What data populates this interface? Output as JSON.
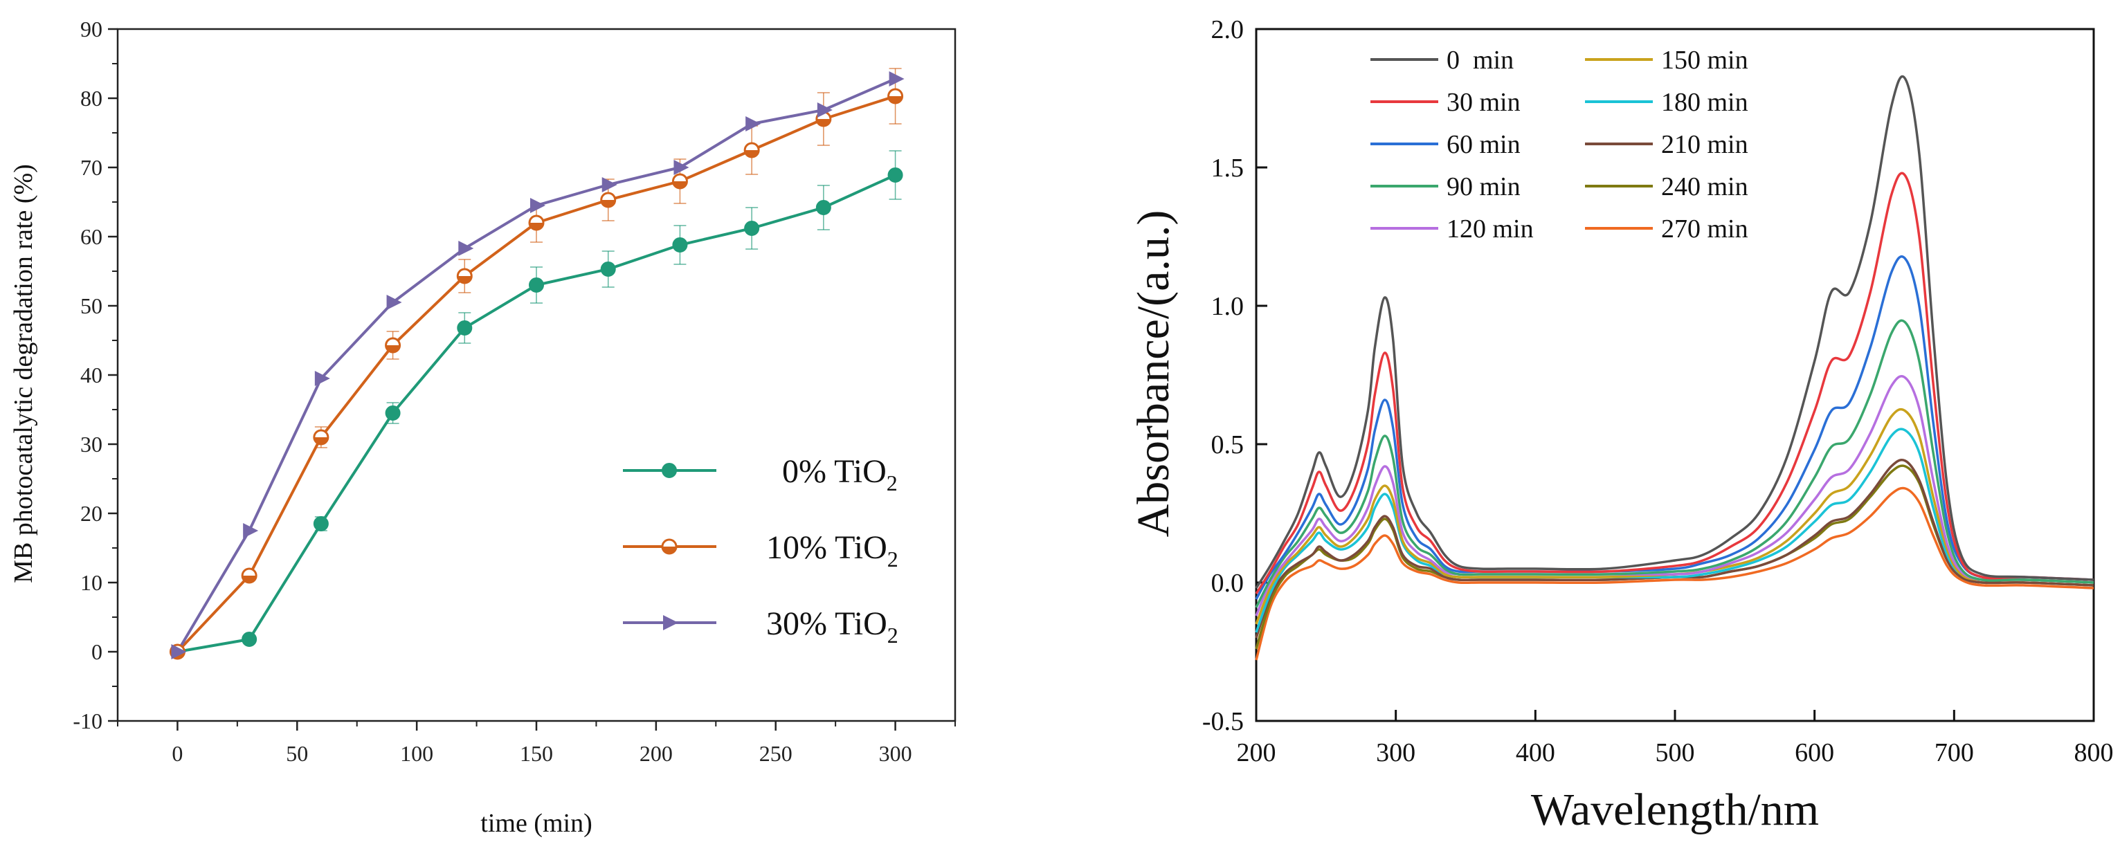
{
  "chart_data": [
    {
      "type": "line",
      "title": "",
      "xlabel": "time (min)",
      "ylabel": "MB photocatalytic  degradation rate (%)",
      "xlim": [
        -25,
        325
      ],
      "ylim": [
        -10,
        90
      ],
      "xticks": [
        "0",
        "50",
        "100",
        "150",
        "200",
        "250",
        "300"
      ],
      "yticks": [
        "-10",
        "0",
        "10",
        "20",
        "30",
        "40",
        "50",
        "60",
        "70",
        "80",
        "90"
      ],
      "legend_position": "right-middle",
      "x": [
        0,
        30,
        60,
        90,
        120,
        150,
        180,
        210,
        240,
        270,
        300
      ],
      "series": [
        {
          "name": "0% TiO2",
          "legend_main": "0% TiO",
          "legend_sub": "2",
          "color": "#1f9a78",
          "marker": "circle",
          "values": [
            0,
            1.8,
            18.5,
            34.5,
            46.8,
            53,
            55.3,
            58.8,
            61.2,
            64.2,
            68.9
          ],
          "errors": [
            0,
            0.5,
            1,
            1.5,
            2.2,
            2.6,
            2.6,
            2.8,
            3,
            3.2,
            3.5
          ]
        },
        {
          "name": "10% TiO2",
          "legend_main": "10% TiO",
          "legend_sub": "2",
          "color": "#d2621a",
          "marker": "half-circle",
          "values": [
            0,
            11,
            31,
            44.3,
            54.3,
            62,
            65.3,
            68,
            72.5,
            77,
            80.3
          ],
          "errors": [
            0,
            0.5,
            1.5,
            2,
            2.4,
            2.8,
            3,
            3.2,
            3.5,
            3.8,
            4
          ]
        },
        {
          "name": "30% TiO2",
          "legend_main": "30% TiO",
          "legend_sub": "2",
          "color": "#7466a8",
          "marker": "triangle-right",
          "values": [
            0,
            17.5,
            39.5,
            50.5,
            58.3,
            64.5,
            67.5,
            70,
            76.3,
            78.3,
            82.8
          ],
          "errors": []
        }
      ]
    },
    {
      "type": "line",
      "title": "",
      "xlabel": "Wavelength/nm",
      "ylabel": "Absorbance/(a.u.)",
      "xlim": [
        200,
        800
      ],
      "ylim": [
        -0.5,
        2.0
      ],
      "xticks": [
        "200",
        "300",
        "400",
        "500",
        "600",
        "700",
        "800"
      ],
      "yticks": [
        "-0.5",
        "0.0",
        "0.5",
        "1.0",
        "1.5",
        "2.0"
      ],
      "legend_position": "top-left",
      "x": [
        200,
        210,
        220,
        230,
        240,
        245,
        250,
        260,
        270,
        280,
        285,
        292,
        298,
        305,
        315,
        325,
        335,
        345,
        360,
        380,
        400,
        450,
        500,
        520,
        540,
        560,
        580,
        600,
        612,
        625,
        640,
        655,
        665,
        675,
        685,
        695,
        705,
        720,
        750,
        800
      ],
      "series": [
        {
          "name": "0  min",
          "color": "#555555",
          "values": [
            -0.02,
            0.06,
            0.15,
            0.25,
            0.4,
            0.47,
            0.42,
            0.31,
            0.4,
            0.62,
            0.85,
            1.03,
            0.88,
            0.42,
            0.25,
            0.18,
            0.1,
            0.06,
            0.05,
            0.05,
            0.05,
            0.05,
            0.08,
            0.1,
            0.16,
            0.25,
            0.45,
            0.8,
            1.05,
            1.05,
            1.3,
            1.72,
            1.82,
            1.55,
            0.9,
            0.35,
            0.1,
            0.03,
            0.02,
            0.01
          ]
        },
        {
          "name": "30 min",
          "color": "#e8383d",
          "values": [
            -0.04,
            0.04,
            0.13,
            0.21,
            0.34,
            0.4,
            0.35,
            0.26,
            0.33,
            0.5,
            0.68,
            0.83,
            0.7,
            0.34,
            0.2,
            0.15,
            0.08,
            0.05,
            0.04,
            0.04,
            0.04,
            0.04,
            0.06,
            0.08,
            0.13,
            0.2,
            0.36,
            0.62,
            0.8,
            0.82,
            1.05,
            1.4,
            1.47,
            1.25,
            0.72,
            0.28,
            0.08,
            0.02,
            0.02,
            0.01
          ]
        },
        {
          "name": "60 min",
          "color": "#2a6fd6",
          "values": [
            -0.06,
            0.03,
            0.1,
            0.18,
            0.27,
            0.32,
            0.28,
            0.21,
            0.27,
            0.41,
            0.55,
            0.66,
            0.56,
            0.28,
            0.16,
            0.12,
            0.06,
            0.04,
            0.04,
            0.04,
            0.04,
            0.04,
            0.05,
            0.07,
            0.1,
            0.16,
            0.28,
            0.48,
            0.62,
            0.65,
            0.85,
            1.12,
            1.17,
            1.0,
            0.58,
            0.22,
            0.07,
            0.02,
            0.02,
            0.01
          ]
        },
        {
          "name": "90 min",
          "color": "#3aa76d",
          "values": [
            -0.09,
            0.01,
            0.09,
            0.15,
            0.23,
            0.27,
            0.24,
            0.18,
            0.22,
            0.33,
            0.44,
            0.53,
            0.45,
            0.22,
            0.13,
            0.1,
            0.05,
            0.03,
            0.03,
            0.03,
            0.03,
            0.03,
            0.04,
            0.05,
            0.08,
            0.13,
            0.22,
            0.38,
            0.49,
            0.52,
            0.68,
            0.9,
            0.94,
            0.8,
            0.47,
            0.18,
            0.05,
            0.01,
            0.01,
            0.0
          ]
        },
        {
          "name": "120 min",
          "color": "#b66fe0",
          "values": [
            -0.12,
            0.0,
            0.07,
            0.13,
            0.19,
            0.23,
            0.2,
            0.15,
            0.18,
            0.27,
            0.35,
            0.42,
            0.36,
            0.18,
            0.11,
            0.08,
            0.04,
            0.03,
            0.03,
            0.03,
            0.03,
            0.03,
            0.03,
            0.04,
            0.07,
            0.11,
            0.18,
            0.3,
            0.38,
            0.41,
            0.54,
            0.71,
            0.74,
            0.63,
            0.37,
            0.14,
            0.04,
            0.01,
            0.01,
            0.0
          ]
        },
        {
          "name": "150 min",
          "color": "#c9a21c",
          "values": [
            -0.15,
            -0.02,
            0.06,
            0.11,
            0.17,
            0.2,
            0.17,
            0.13,
            0.16,
            0.23,
            0.3,
            0.35,
            0.3,
            0.15,
            0.09,
            0.07,
            0.03,
            0.02,
            0.02,
            0.02,
            0.02,
            0.02,
            0.03,
            0.04,
            0.06,
            0.09,
            0.15,
            0.25,
            0.32,
            0.35,
            0.46,
            0.6,
            0.62,
            0.53,
            0.31,
            0.12,
            0.03,
            0.01,
            0.01,
            0.0
          ]
        },
        {
          "name": "180 min",
          "color": "#1bc3d6",
          "values": [
            -0.18,
            -0.04,
            0.05,
            0.1,
            0.15,
            0.18,
            0.15,
            0.12,
            0.14,
            0.2,
            0.27,
            0.32,
            0.27,
            0.14,
            0.08,
            0.06,
            0.03,
            0.02,
            0.02,
            0.02,
            0.02,
            0.02,
            0.02,
            0.03,
            0.05,
            0.08,
            0.13,
            0.22,
            0.28,
            0.3,
            0.4,
            0.53,
            0.55,
            0.47,
            0.27,
            0.1,
            0.03,
            0.01,
            0.01,
            0.0
          ]
        },
        {
          "name": "210 min",
          "color": "#7a4a3a",
          "values": [
            -0.2,
            -0.05,
            0.03,
            0.07,
            0.1,
            0.13,
            0.11,
            0.08,
            0.1,
            0.15,
            0.2,
            0.24,
            0.2,
            0.1,
            0.06,
            0.05,
            0.02,
            0.01,
            0.01,
            0.01,
            0.01,
            0.01,
            0.02,
            0.02,
            0.04,
            0.06,
            0.1,
            0.17,
            0.22,
            0.24,
            0.32,
            0.42,
            0.44,
            0.37,
            0.22,
            0.08,
            0.02,
            0.0,
            0.0,
            -0.01
          ]
        },
        {
          "name": "240 min",
          "color": "#7f7a12",
          "values": [
            -0.24,
            -0.07,
            0.02,
            0.06,
            0.1,
            0.12,
            0.1,
            0.08,
            0.09,
            0.14,
            0.19,
            0.23,
            0.19,
            0.09,
            0.05,
            0.04,
            0.02,
            0.01,
            0.01,
            0.01,
            0.01,
            0.01,
            0.02,
            0.02,
            0.04,
            0.06,
            0.1,
            0.16,
            0.21,
            0.23,
            0.31,
            0.4,
            0.42,
            0.36,
            0.21,
            0.08,
            0.02,
            0.0,
            0.0,
            -0.01
          ]
        },
        {
          "name": "270 min",
          "color": "#f06a22",
          "values": [
            -0.28,
            -0.09,
            0.0,
            0.04,
            0.06,
            0.08,
            0.07,
            0.05,
            0.06,
            0.1,
            0.14,
            0.17,
            0.14,
            0.07,
            0.04,
            0.03,
            0.01,
            0.0,
            0.0,
            0.0,
            0.0,
            0.0,
            0.01,
            0.01,
            0.02,
            0.04,
            0.07,
            0.12,
            0.16,
            0.18,
            0.24,
            0.32,
            0.34,
            0.29,
            0.17,
            0.06,
            0.01,
            -0.01,
            -0.01,
            -0.02
          ]
        }
      ]
    }
  ]
}
